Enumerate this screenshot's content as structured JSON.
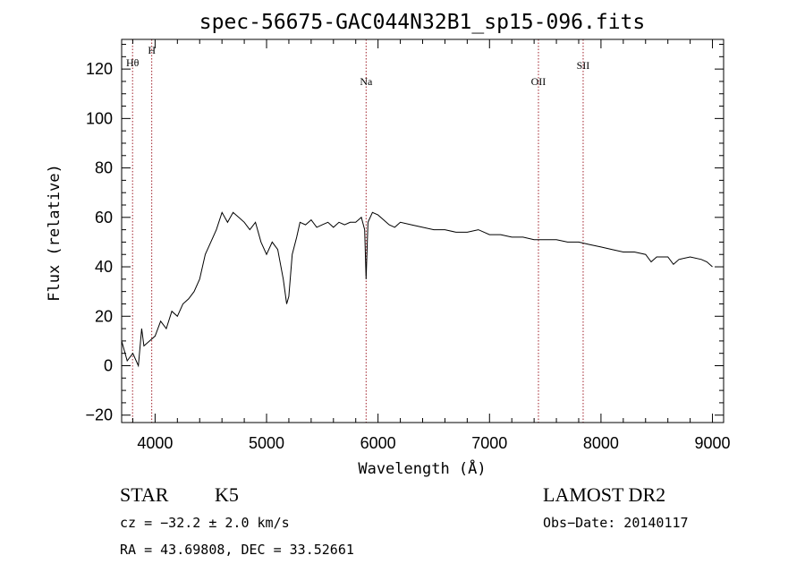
{
  "chart_data": {
    "type": "line",
    "title": "spec-56675-GAC044N32B1_sp15-096.fits",
    "xlabel": "Wavelength (Å)",
    "ylabel": "Flux (relative)",
    "xlim": [
      3700,
      9100
    ],
    "ylim": [
      -23,
      132
    ],
    "x_ticks": [
      4000,
      5000,
      6000,
      7000,
      8000,
      9000
    ],
    "y_ticks": [
      -20,
      0,
      20,
      40,
      60,
      80,
      100,
      120
    ],
    "x_tick_labels": [
      "4000",
      "5000",
      "6000",
      "7000",
      "8000",
      "9000"
    ],
    "y_tick_labels": [
      "−20",
      "0",
      "20",
      "40",
      "60",
      "80",
      "100",
      "120"
    ],
    "line_color": "#000000",
    "marker_color": "#a0202a",
    "spectral_lines": [
      {
        "label": "Hθ",
        "x": 3798
      },
      {
        "label": "H",
        "x": 3970
      },
      {
        "label": "Na",
        "x": 5893
      },
      {
        "label": "OII",
        "x": 7439
      },
      {
        "label": "SII",
        "x": 7840
      }
    ],
    "series": [
      {
        "x": [
          3700,
          3750,
          3800,
          3850,
          3880,
          3900,
          3950,
          4000,
          4050,
          4100,
          4150,
          4200,
          4250,
          4300,
          4350,
          4400,
          4450,
          4500,
          4550,
          4600,
          4650,
          4700,
          4750,
          4800,
          4850,
          4900,
          4950,
          5000,
          5050,
          5100,
          5150,
          5180,
          5200,
          5230,
          5270,
          5300,
          5350,
          5400,
          5450,
          5500,
          5550,
          5600,
          5650,
          5700,
          5750,
          5800,
          5850,
          5880,
          5893,
          5910,
          5950,
          6000,
          6050,
          6100,
          6150,
          6200,
          6300,
          6400,
          6500,
          6600,
          6700,
          6800,
          6900,
          7000,
          7100,
          7200,
          7300,
          7400,
          7500,
          7600,
          7700,
          7800,
          7900,
          8000,
          8100,
          8200,
          8300,
          8400,
          8450,
          8500,
          8600,
          8650,
          8700,
          8800,
          8900,
          8950,
          9000
        ],
        "y": [
          10,
          2,
          5,
          0,
          15,
          8,
          10,
          12,
          18,
          15,
          22,
          20,
          25,
          27,
          30,
          35,
          45,
          50,
          55,
          62,
          58,
          62,
          60,
          58,
          55,
          58,
          50,
          45,
          50,
          47,
          35,
          25,
          28,
          45,
          52,
          58,
          57,
          59,
          56,
          57,
          58,
          56,
          58,
          57,
          58,
          58,
          60,
          55,
          35,
          58,
          62,
          61,
          59,
          57,
          56,
          58,
          57,
          56,
          55,
          55,
          54,
          54,
          55,
          53,
          53,
          52,
          52,
          51,
          51,
          51,
          50,
          50,
          49,
          48,
          47,
          46,
          46,
          45,
          42,
          44,
          44,
          41,
          43,
          44,
          43,
          42,
          40
        ]
      }
    ]
  },
  "footer": {
    "object_type": "STAR",
    "subclass": "K5",
    "survey": "LAMOST DR2",
    "cz_text": "cz = −32.2 ± 2.0 km/s",
    "obs_date_text": "Obs−Date: 20140117",
    "coords_text": "RA =  43.69808, DEC =  33.52661"
  }
}
